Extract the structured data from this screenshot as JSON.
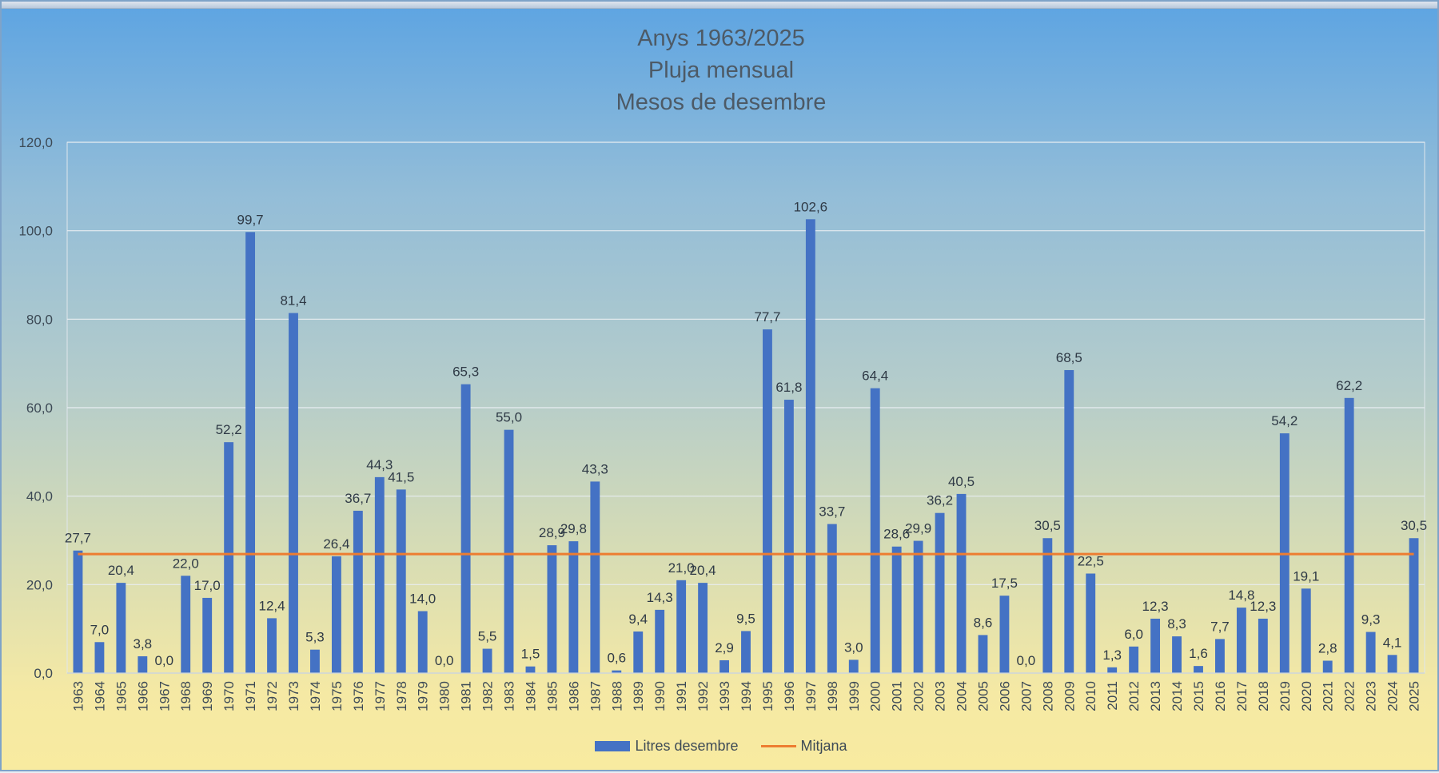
{
  "chart_data": {
    "type": "bar",
    "title": [
      "Anys 1963/2025",
      "Pluja mensual",
      "Mesos de desembre"
    ],
    "xlabel": "",
    "ylabel": "",
    "ylim": [
      0,
      120
    ],
    "yticks": [
      "0,0",
      "20,0",
      "40,0",
      "60,0",
      "80,0",
      "100,0",
      "120,0"
    ],
    "grid": true,
    "legend_position": "bottom",
    "categories": [
      "1963",
      "1964",
      "1965",
      "1966",
      "1967",
      "1968",
      "1969",
      "1970",
      "1971",
      "1972",
      "1973",
      "1974",
      "1975",
      "1976",
      "1977",
      "1978",
      "1979",
      "1980",
      "1981",
      "1982",
      "1983",
      "1984",
      "1985",
      "1986",
      "1987",
      "1988",
      "1989",
      "1990",
      "1991",
      "1992",
      "1993",
      "1994",
      "1995",
      "1996",
      "1997",
      "1998",
      "1999",
      "2000",
      "2001",
      "2002",
      "2003",
      "2004",
      "2005",
      "2006",
      "2007",
      "2008",
      "2009",
      "2010",
      "2011",
      "2012",
      "2013",
      "2014",
      "2015",
      "2016",
      "2017",
      "2018",
      "2019",
      "2020",
      "2021",
      "2022",
      "2023",
      "2024",
      "2025"
    ],
    "series": [
      {
        "name": "Litres desembre",
        "type": "bar",
        "color": "#4472c4",
        "values": [
          27.7,
          7.0,
          20.4,
          3.8,
          0.0,
          22.0,
          17.0,
          52.2,
          99.7,
          12.4,
          81.4,
          5.3,
          26.4,
          36.7,
          44.3,
          41.5,
          14.0,
          0.0,
          65.3,
          5.5,
          55.0,
          1.5,
          28.9,
          29.8,
          43.3,
          0.6,
          9.4,
          14.3,
          21.0,
          20.4,
          2.9,
          9.5,
          77.7,
          61.8,
          102.6,
          33.7,
          3.0,
          64.4,
          28.6,
          29.9,
          36.2,
          40.5,
          8.6,
          17.5,
          0.0,
          30.5,
          68.5,
          22.5,
          1.3,
          6.0,
          12.3,
          8.3,
          1.6,
          7.7,
          14.8,
          12.3,
          54.2,
          19.1,
          2.8,
          62.2,
          9.3,
          4.1,
          30.5
        ],
        "labels": [
          "27,7",
          "7,0",
          "20,4",
          "3,8",
          "0,0",
          "22,0",
          "17,0",
          "52,2",
          "99,7",
          "12,4",
          "81,4",
          "5,3",
          "26,4",
          "36,7",
          "44,3",
          "41,5",
          "14,0",
          "0,0",
          "65,3",
          "5,5",
          "55,0",
          "1,5",
          "28,9",
          "29,8",
          "43,3",
          "0,6",
          "9,4",
          "14,3",
          "21,0",
          "20,4",
          "2,9",
          "9,5",
          "77,7",
          "61,8",
          "102,6",
          "33,7",
          "3,0",
          "64,4",
          "28,6",
          "29,9",
          "36,2",
          "40,5",
          "8,6",
          "17,5",
          "0,0",
          "30,5",
          "68,5",
          "22,5",
          "1,3",
          "6,0",
          "12,3",
          "8,3",
          "1,6",
          "7,7",
          "14,8",
          "12,3",
          "54,2",
          "19,1",
          "2,8",
          "62,2",
          "9,3",
          "4,1",
          "30,5"
        ]
      },
      {
        "name": "Mitjana",
        "type": "line",
        "color": "#ed7d31",
        "value": 26.9
      }
    ]
  }
}
